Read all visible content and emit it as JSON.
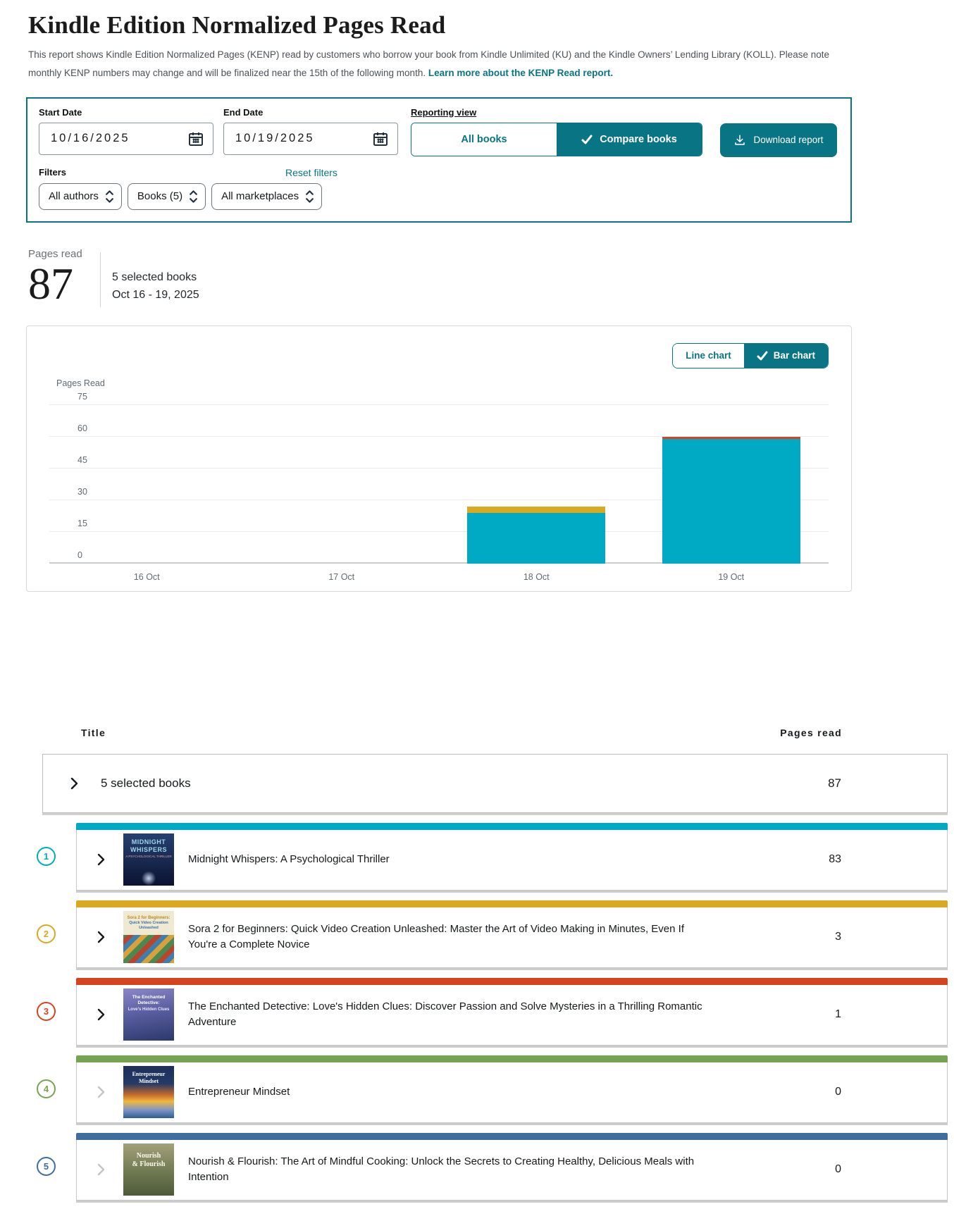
{
  "page": {
    "title": "Kindle Edition Normalized Pages Read",
    "description": "This report shows Kindle Edition Normalized Pages (KENP) read by customers who borrow your book from Kindle Unlimited (KU) and the Kindle Owners’ Lending Library (KOLL). Please note monthly KENP numbers may change and will be finalized near the 15th of the following month.",
    "learn_more_link": "Learn more about the KENP Read report."
  },
  "filters": {
    "start_date": {
      "label": "Start Date",
      "value": "10/16/2025"
    },
    "end_date": {
      "label": "End Date",
      "value": "10/19/2025"
    },
    "reporting_view_label": "Reporting view",
    "view_all_books": "All books",
    "view_compare_books": "Compare books",
    "download_label": "Download report",
    "filters_label": "Filters",
    "reset_label": "Reset filters",
    "dropdowns": {
      "authors": "All authors",
      "books": "Books (5)",
      "marketplaces": "All marketplaces"
    }
  },
  "metric": {
    "label": "Pages read",
    "value": "87",
    "selection": "5 selected books",
    "date_range": "Oct 16 - 19, 2025"
  },
  "chart": {
    "toggle_line": "Line chart",
    "toggle_bar": "Bar chart",
    "chart_data": {
      "type": "bar",
      "stacked": true,
      "title": "",
      "ylabel": "Pages Read",
      "xlabel": "",
      "categories": [
        "16 Oct",
        "17 Oct",
        "18 Oct",
        "19 Oct"
      ],
      "yticks": [
        0,
        15,
        30,
        45,
        60,
        75
      ],
      "ylim": [
        0,
        81
      ],
      "grid": true,
      "legend": "none",
      "series": [
        {
          "name": "Midnight Whispers: A Psychological Thriller",
          "color": "#00a9c4",
          "values": [
            0,
            0,
            24,
            59
          ]
        },
        {
          "name": "Sora 2 for Beginners: Quick Video Creation Unleashed",
          "color": "#d9a921",
          "values": [
            0,
            0,
            3,
            0
          ]
        },
        {
          "name": "The Enchanted Detective: Love's Hidden Clues",
          "color": "#d5431f",
          "values": [
            0,
            0,
            0,
            1
          ]
        }
      ]
    }
  },
  "table": {
    "header_title": "Title",
    "header_pages": "Pages read",
    "summary_row": {
      "label": "5 selected books",
      "value": "87"
    },
    "rows": [
      {
        "index": "1",
        "color": "#00a9c4",
        "expandable": true,
        "title": "Midnight Whispers: A Psychological Thriller",
        "pages": "83",
        "cover": {
          "cls": "cover-1",
          "line1": "MIDNIGHT WHISPERS",
          "line2": "A PSYCHOLOGICAL THRILLER"
        }
      },
      {
        "index": "2",
        "color": "#d9a921",
        "expandable": true,
        "title": "Sora 2 for Beginners: Quick Video Creation Unleashed: Master the Art of Video Making in Minutes, Even If You're a Complete Novice",
        "pages": "3",
        "cover": {
          "cls": "cover-2",
          "line1": "Sora 2 for Beginners:",
          "line2": "Quick Video Creation Unleashed"
        }
      },
      {
        "index": "3",
        "color": "#d5431f",
        "expandable": true,
        "title": "The Enchanted Detective: Love's Hidden Clues: Discover Passion and Solve Mysteries in a Thrilling Romantic Adventure",
        "pages": "1",
        "cover": {
          "cls": "cover-3",
          "line1": "The Enchanted Detective:",
          "line2": "Love's Hidden Clues"
        }
      },
      {
        "index": "4",
        "color": "#76a452",
        "expandable": false,
        "title": "Entrepreneur Mindset",
        "pages": "0",
        "cover": {
          "cls": "cover-4",
          "line1": "Entrepreneur Mindset",
          "line2": ""
        }
      },
      {
        "index": "5",
        "color": "#3e6d9e",
        "expandable": false,
        "title": "Nourish & Flourish: The Art of Mindful Cooking: Unlock the Secrets to Creating Healthy, Delicious Meals with Intention",
        "pages": "0",
        "cover": {
          "cls": "cover-5",
          "line1": "Nourish",
          "line2": "& Flourish"
        }
      }
    ]
  }
}
